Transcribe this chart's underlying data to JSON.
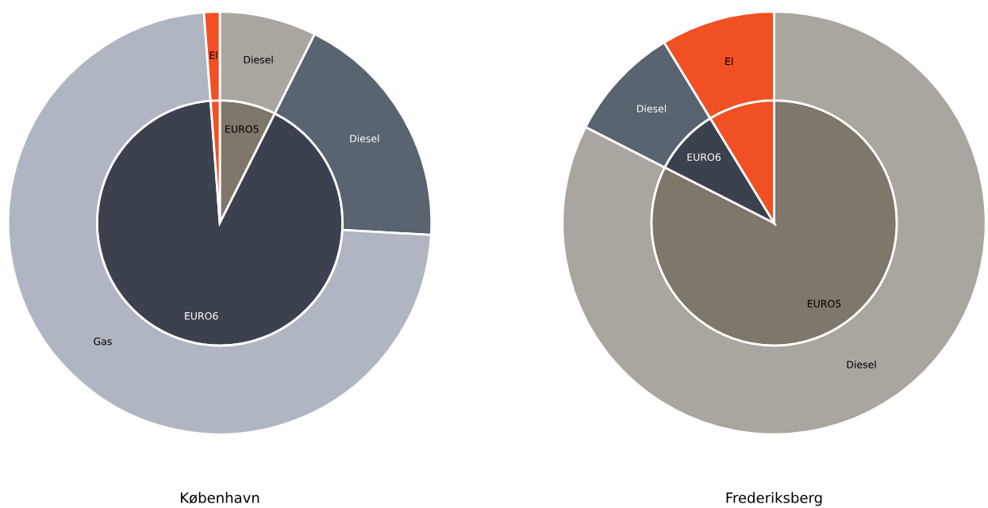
{
  "chart_data": [
    {
      "type": "pie",
      "title": "København",
      "series": [
        {
          "values": [
            7.4,
            91.4,
            1.2
          ],
          "colors": [
            "#7f766c",
            "#3c424d",
            "#f05023"
          ],
          "value_labels": [
            "EURO5",
            "EURO6",
            null
          ]
        },
        {
          "type": "donut",
          "values": [
            7.4,
            18.5,
            72.9,
            1.2
          ],
          "colors": [
            "#aaa59e",
            "#5a6370",
            "#b0b6c1",
            "#f05023"
          ],
          "value_labels": [
            "Diesel",
            "Diesel",
            "Gas",
            "El"
          ]
        }
      ]
    },
    {
      "type": "pie",
      "title": "Frederiksberg",
      "series": [
        {
          "values": [
            82.5,
            8.8,
            8.7
          ],
          "colors": [
            "#7f766c",
            "#3c424d",
            "#f05023"
          ],
          "value_labels": [
            "EURO5",
            "EURO6",
            null
          ]
        },
        {
          "type": "donut",
          "values": [
            82.5,
            8.8,
            8.7
          ],
          "colors": [
            "#aaa59e",
            "#5a6370",
            "#f05023"
          ],
          "value_labels": [
            "Diesel",
            "Diesel",
            "El"
          ]
        }
      ]
    }
  ]
}
